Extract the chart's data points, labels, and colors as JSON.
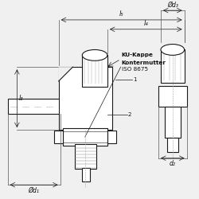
{
  "bg_color": "#f0f0f0",
  "line_color": "#1a1a1a",
  "dim_color": "#333333",
  "text_color": "#111111",
  "annotations": {
    "l5": "l₅",
    "l4": "l₄",
    "l3": "l₃",
    "d1": "Ød₁",
    "d2": "d₂",
    "d3": "Ød₃",
    "label1": "KU-Kappe",
    "label2": "Kontermutter",
    "label3": "ISO 8675",
    "ref1": "1",
    "ref2": "2"
  }
}
